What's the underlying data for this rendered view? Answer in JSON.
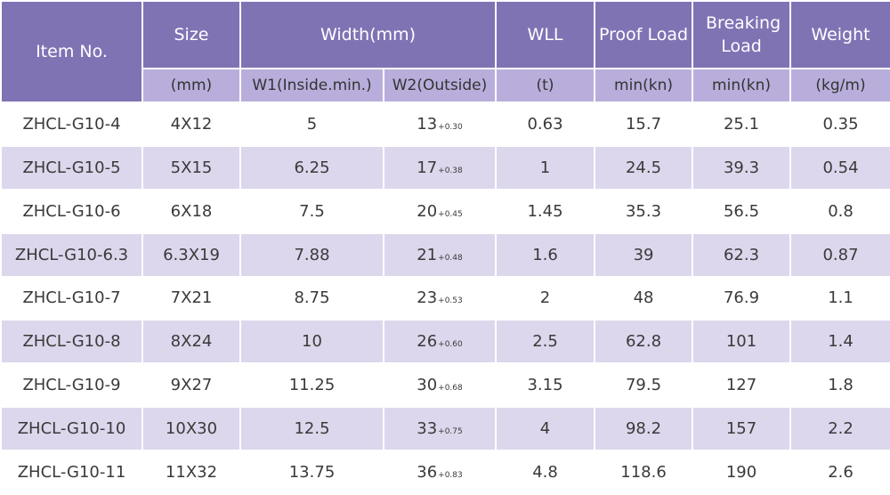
{
  "header": {
    "item_no": "Item No.",
    "size": "Size",
    "width": "Width(mm)",
    "wll": "WLL",
    "proof_load": "Proof Load",
    "breaking_load": "Breaking Load",
    "weight": "Weight"
  },
  "units": {
    "size": "(mm)",
    "w1": "W1(Inside.min.)",
    "w2": "W2(Outside)",
    "wll": "(t)",
    "proof_load": "min(kn)",
    "breaking_load": "min(kn)",
    "weight": "(kg/m)"
  },
  "rows": [
    {
      "item": "ZHCL-G10-4",
      "size": "4X12",
      "w1": "5",
      "w2": "13",
      "tol": "+0.30",
      "wll": "0.63",
      "proof": "15.7",
      "breaking": "25.1",
      "weight": "0.35"
    },
    {
      "item": "ZHCL-G10-5",
      "size": "5X15",
      "w1": "6.25",
      "w2": "17",
      "tol": "+0.38",
      "wll": "1",
      "proof": "24.5",
      "breaking": "39.3",
      "weight": "0.54"
    },
    {
      "item": "ZHCL-G10-6",
      "size": "6X18",
      "w1": "7.5",
      "w2": "20",
      "tol": "+0.45",
      "wll": "1.45",
      "proof": "35.3",
      "breaking": "56.5",
      "weight": "0.8"
    },
    {
      "item": "ZHCL-G10-6.3",
      "size": "6.3X19",
      "w1": "7.88",
      "w2": "21",
      "tol": "+0.48",
      "wll": "1.6",
      "proof": "39",
      "breaking": "62.3",
      "weight": "0.87"
    },
    {
      "item": "ZHCL-G10-7",
      "size": "7X21",
      "w1": "8.75",
      "w2": "23",
      "tol": "+0.53",
      "wll": "2",
      "proof": "48",
      "breaking": "76.9",
      "weight": "1.1"
    },
    {
      "item": "ZHCL-G10-8",
      "size": "8X24",
      "w1": "10",
      "w2": "26",
      "tol": "+0.60",
      "wll": "2.5",
      "proof": "62.8",
      "breaking": "101",
      "weight": "1.4"
    },
    {
      "item": "ZHCL-G10-9",
      "size": "9X27",
      "w1": "11.25",
      "w2": "30",
      "tol": "+0.68",
      "wll": "3.15",
      "proof": "79.5",
      "breaking": "127",
      "weight": "1.8"
    },
    {
      "item": "ZHCL-G10-10",
      "size": "10X30",
      "w1": "12.5",
      "w2": "33",
      "tol": "+0.75",
      "wll": "4",
      "proof": "98.2",
      "breaking": "157",
      "weight": "2.2"
    },
    {
      "item": "ZHCL-G10-11",
      "size": "11X32",
      "w1": "13.75",
      "w2": "36",
      "tol": "+0.83",
      "wll": "4.8",
      "proof": "118.6",
      "breaking": "190",
      "weight": "2.6"
    }
  ],
  "colors": {
    "header": "#8073b4",
    "unit_row": "#b9aedb",
    "row_alt": "#dcd7ec",
    "row": "#ffffff"
  }
}
